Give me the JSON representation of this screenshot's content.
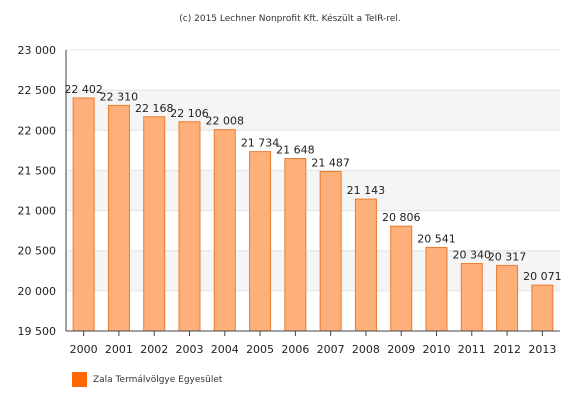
{
  "credit": "(c) 2015 Lechner Nonprofit Kft. Készült a TeIR-rel.",
  "colors": {
    "bar_fill": "#ffb07a",
    "bar_stroke": "#e87c2e",
    "legend_swatch": "#ff6a00",
    "band": "#f5f5f5",
    "grid": "#e4e4e4",
    "axis": "#444444"
  },
  "legend": {
    "label": "Zala Termálvölgye Egyesület",
    "position": "bottom-left"
  },
  "chart_data": {
    "type": "bar",
    "title": "",
    "xlabel": "",
    "ylabel": "",
    "ylim": [
      19500,
      23000
    ],
    "ytick_step": 500,
    "ytick_labels": [
      "19 500",
      "20 000",
      "20 500",
      "21 000",
      "21 500",
      "22 000",
      "22 500",
      "23 000"
    ],
    "grid": true,
    "alternating_bands": true,
    "categories": [
      "2000",
      "2001",
      "2002",
      "2003",
      "2004",
      "2005",
      "2006",
      "2007",
      "2008",
      "2009",
      "2010",
      "2011",
      "2012",
      "2013"
    ],
    "series": [
      {
        "name": "Zala Termálvölgye Egyesület",
        "values": [
          22402,
          22310,
          22168,
          22106,
          22008,
          21734,
          21648,
          21487,
          21143,
          20806,
          20541,
          20340,
          20317,
          20071
        ],
        "labels": [
          "22 402",
          "22 310",
          "22 168",
          "22 106",
          "22 008",
          "21 734",
          "21 648",
          "21 487",
          "21 143",
          "20 806",
          "20 541",
          "20 340",
          "20 317",
          "20 071"
        ]
      }
    ]
  }
}
